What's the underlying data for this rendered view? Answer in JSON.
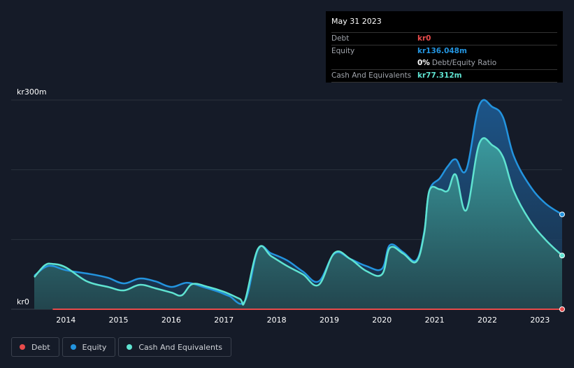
{
  "tooltip": {
    "date": "May 31 2023",
    "debt_label": "Debt",
    "debt_value": "kr0",
    "equity_label": "Equity",
    "equity_value": "kr136.048m",
    "ratio_value": "0%",
    "ratio_label": "Debt/Equity Ratio",
    "cash_label": "Cash And Equivalents",
    "cash_value": "kr77.312m"
  },
  "colors": {
    "debt": "#e84b4b",
    "equity": "#2394df",
    "cash": "#5fe3d1",
    "background": "#151b28"
  },
  "chart_data": {
    "type": "area",
    "y_axis_labels": [
      "kr300m",
      "kr0"
    ],
    "ylim": [
      0,
      300
    ],
    "xlim": [
      2013.4,
      2023.42
    ],
    "x_ticks": [
      2014,
      2015,
      2016,
      2017,
      2018,
      2019,
      2020,
      2021,
      2022,
      2023
    ],
    "x_tick_labels": [
      "2014",
      "2015",
      "2016",
      "2017",
      "2018",
      "2019",
      "2020",
      "2021",
      "2022",
      "2023"
    ],
    "grid": true,
    "legend_position": "bottom-left",
    "series": [
      {
        "name": "Debt",
        "color_key": "debt",
        "x": [
          2013.75,
          2023.42
        ],
        "y": [
          0,
          0
        ]
      },
      {
        "name": "Equity",
        "color_key": "equity",
        "x": [
          2013.4,
          2013.6,
          2013.75,
          2014.0,
          2014.5,
          2014.8,
          2015.1,
          2015.4,
          2015.7,
          2016.0,
          2016.3,
          2016.6,
          2016.9,
          2017.1,
          2017.4,
          2017.65,
          2017.9,
          2018.2,
          2018.5,
          2018.8,
          2019.1,
          2019.4,
          2019.7,
          2020.0,
          2020.15,
          2020.4,
          2020.65,
          2020.8,
          2020.9,
          2021.1,
          2021.25,
          2021.4,
          2021.6,
          2021.85,
          2022.1,
          2022.3,
          2022.5,
          2022.8,
          2023.1,
          2023.42
        ],
        "y": [
          48,
          60,
          62,
          56,
          50,
          45,
          37,
          44,
          40,
          32,
          38,
          32,
          25,
          19,
          12,
          86,
          80,
          70,
          54,
          40,
          80,
          72,
          62,
          58,
          92,
          82,
          70,
          110,
          170,
          188,
          205,
          215,
          200,
          293,
          290,
          275,
          220,
          178,
          152,
          136
        ]
      },
      {
        "name": "Cash And Equivalents",
        "color_key": "cash",
        "x": [
          2013.4,
          2013.6,
          2013.75,
          2014.0,
          2014.4,
          2014.8,
          2015.1,
          2015.4,
          2015.7,
          2016.0,
          2016.2,
          2016.4,
          2016.7,
          2017.0,
          2017.3,
          2017.4,
          2017.65,
          2017.9,
          2018.2,
          2018.5,
          2018.8,
          2019.1,
          2019.4,
          2019.7,
          2020.0,
          2020.15,
          2020.4,
          2020.65,
          2020.8,
          2020.9,
          2021.1,
          2021.25,
          2021.4,
          2021.6,
          2021.85,
          2022.1,
          2022.3,
          2022.5,
          2022.8,
          2023.1,
          2023.42
        ],
        "y": [
          46,
          63,
          65,
          60,
          40,
          32,
          27,
          35,
          30,
          24,
          20,
          36,
          32,
          25,
          15,
          12,
          87,
          76,
          62,
          50,
          35,
          81,
          72,
          55,
          50,
          88,
          80,
          68,
          108,
          170,
          172,
          170,
          193,
          142,
          238,
          235,
          218,
          170,
          128,
          100,
          77
        ]
      }
    ]
  }
}
